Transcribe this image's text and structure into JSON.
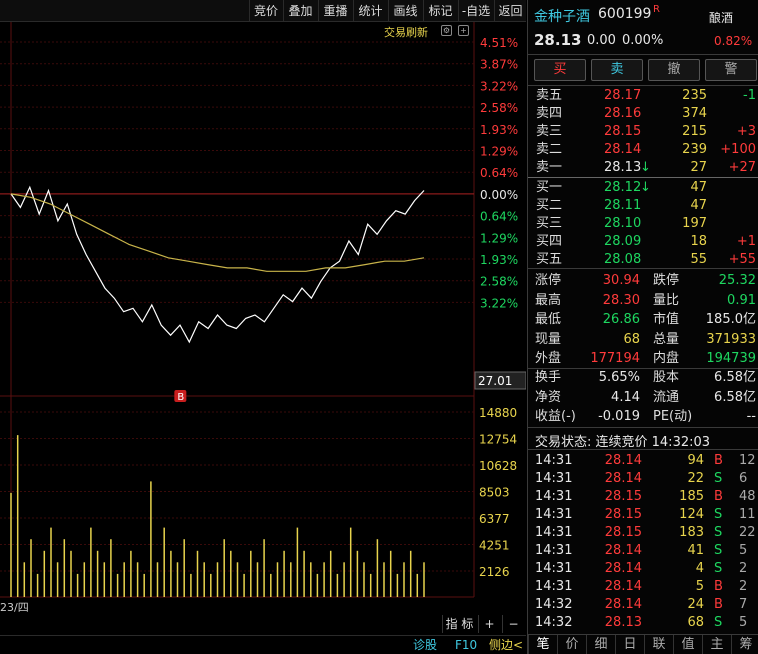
{
  "toolbar": {
    "buttons": [
      "竞价",
      "叠加",
      "重播",
      "统计",
      "画线",
      "标记",
      "-自选",
      "返回"
    ]
  },
  "chart": {
    "refresh_label": "交易刷新",
    "pct_labels": [
      "4.51%",
      "3.87%",
      "3.22%",
      "2.58%",
      "1.93%",
      "1.29%",
      "0.64%",
      "0.00%",
      "0.64%",
      "1.29%",
      "1.93%",
      "2.58%",
      "3.22%"
    ],
    "current_price_tag": "27.01",
    "volume_labels": [
      "14880",
      "12754",
      "10628",
      "8503",
      "6377",
      "4251",
      "2126"
    ],
    "date_label": "23/四",
    "buy_marker": "B",
    "price_line_color": "#ffffff",
    "avg_line_color": "#c8b44a",
    "volume_bar_color": "#e8d44d"
  },
  "chart_data": {
    "type": "line",
    "title": "",
    "series": [
      {
        "values": [
          0.0,
          -0.4,
          0.2,
          -0.6,
          0.1,
          -0.8,
          -0.3,
          -1.2,
          -1.8,
          -2.3,
          -2.8,
          -3.1,
          -3.5,
          -3.4,
          -3.8,
          -3.3,
          -3.9,
          -4.2,
          -3.9,
          -4.4,
          -3.8,
          -4.0,
          -3.6,
          -3.9,
          -4.0,
          -3.7,
          -3.6,
          -3.8,
          -3.4,
          -3.0,
          -3.2,
          -2.8,
          -3.1,
          -2.6,
          -2.2,
          -2.0,
          -1.4,
          -1.8,
          -0.9,
          -1.2,
          -0.8,
          -0.5,
          -0.6,
          -0.2,
          0.1
        ]
      },
      {
        "values": [
          0.0,
          -0.1,
          -0.3,
          -0.6,
          -0.9,
          -1.2,
          -1.5,
          -1.7,
          -1.9,
          -2.0,
          -2.1,
          -2.2,
          -2.2,
          -2.3,
          -2.3,
          -2.3,
          -2.2,
          -2.2,
          -2.1,
          -2.0,
          -2.0,
          -1.9
        ]
      }
    ],
    "volume": [
      9,
      14,
      3,
      5,
      2,
      4,
      6,
      3,
      5,
      4,
      2,
      3,
      6,
      4,
      3,
      5,
      2,
      3,
      4,
      3,
      2,
      10,
      3,
      6,
      4,
      3,
      5,
      2,
      4,
      3,
      2,
      3,
      5,
      4,
      3,
      2,
      4,
      3,
      5,
      2,
      3,
      4,
      3,
      6,
      4,
      3,
      2,
      3,
      4,
      2,
      3,
      6,
      4,
      3,
      2,
      5,
      3,
      4,
      2,
      3,
      4,
      2,
      3
    ]
  },
  "bottom": {
    "zoom_buttons": [
      "指 标",
      "+",
      "−"
    ],
    "status_items": [
      "诊股",
      "F10",
      "侧边<"
    ]
  },
  "quote": {
    "name": "金种子酒",
    "code": "600199",
    "flag": "R",
    "sector": "酿酒",
    "sector_pct": "0.82%",
    "price": "28.13",
    "change": "0.00",
    "change_pct": "0.00%",
    "trade_buttons": [
      "买",
      "卖",
      "撤",
      "警"
    ],
    "asks": [
      {
        "label": "卖五",
        "price": "28.17",
        "vol": "235",
        "chg": "-1"
      },
      {
        "label": "卖四",
        "price": "28.16",
        "vol": "374",
        "chg": ""
      },
      {
        "label": "卖三",
        "price": "28.15",
        "vol": "215",
        "chg": "+3"
      },
      {
        "label": "卖二",
        "price": "28.14",
        "vol": "239",
        "chg": "+100"
      },
      {
        "label": "卖一",
        "price": "28.13",
        "arrow": "↓",
        "vol": "27",
        "chg": "+27"
      }
    ],
    "bids": [
      {
        "label": "买一",
        "price": "28.12",
        "arrow": "↓",
        "vol": "47",
        "chg": ""
      },
      {
        "label": "买二",
        "price": "28.11",
        "vol": "47",
        "chg": ""
      },
      {
        "label": "买三",
        "price": "28.10",
        "vol": "197",
        "chg": ""
      },
      {
        "label": "买四",
        "price": "28.09",
        "vol": "18",
        "chg": "+1"
      },
      {
        "label": "买五",
        "price": "28.08",
        "vol": "55",
        "chg": "+55"
      }
    ],
    "stats": [
      {
        "l1": "涨停",
        "v1": "30.94",
        "c1": "red",
        "l2": "跌停",
        "v2": "25.32",
        "c2": "green"
      },
      {
        "l1": "最高",
        "v1": "28.30",
        "c1": "red",
        "l2": "量比",
        "v2": "0.91",
        "c2": "green"
      },
      {
        "l1": "最低",
        "v1": "26.86",
        "c1": "green",
        "l2": "市值",
        "v2": "185.0亿",
        "c2": "white"
      },
      {
        "l1": "现量",
        "v1": "68",
        "c1": "yellow",
        "l2": "总量",
        "v2": "371933",
        "c2": "yellow"
      },
      {
        "l1": "外盘",
        "v1": "177194",
        "c1": "red",
        "l2": "内盘",
        "v2": "194739",
        "c2": "green"
      }
    ],
    "stats2": [
      {
        "l1": "换手",
        "v1": "5.65%",
        "c1": "white",
        "l2": "股本",
        "v2": "6.58亿",
        "c2": "white"
      },
      {
        "l1": "净资",
        "v1": "4.14",
        "c1": "white",
        "l2": "流通",
        "v2": "6.58亿",
        "c2": "white"
      },
      {
        "l1": "收益(-)",
        "v1": "-0.019",
        "c1": "white",
        "l2": "PE(动)",
        "v2": "--",
        "c2": "white"
      }
    ],
    "trade_status": "交易状态: 连续竞价 14:32:03",
    "ticks": [
      {
        "time": "14:31",
        "price": "28.14",
        "vol": "94",
        "side": "B",
        "count": "12"
      },
      {
        "time": "14:31",
        "price": "28.14",
        "vol": "22",
        "side": "S",
        "count": "6"
      },
      {
        "time": "14:31",
        "price": "28.15",
        "vol": "185",
        "side": "B",
        "count": "48"
      },
      {
        "time": "14:31",
        "price": "28.15",
        "vol": "124",
        "side": "S",
        "count": "11"
      },
      {
        "time": "14:31",
        "price": "28.15",
        "vol": "183",
        "side": "S",
        "count": "22"
      },
      {
        "time": "14:31",
        "price": "28.14",
        "vol": "41",
        "side": "S",
        "count": "5"
      },
      {
        "time": "14:31",
        "price": "28.14",
        "vol": "4",
        "side": "S",
        "count": "2"
      },
      {
        "time": "14:31",
        "price": "28.14",
        "vol": "5",
        "side": "B",
        "count": "2"
      },
      {
        "time": "14:32",
        "price": "28.14",
        "vol": "24",
        "side": "B",
        "count": "7"
      },
      {
        "time": "14:32",
        "price": "28.13",
        "vol": "68",
        "side": "S",
        "count": "5"
      }
    ],
    "tabs": [
      "笔",
      "价",
      "细",
      "日",
      "联",
      "值",
      "主",
      "筹"
    ]
  }
}
